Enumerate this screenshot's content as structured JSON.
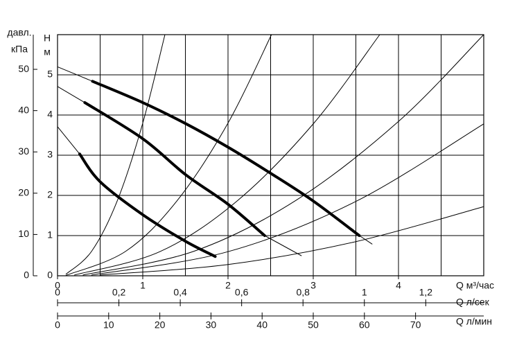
{
  "chart_data": {
    "type": "line",
    "ylabel": [
      "H",
      "м"
    ],
    "y2label": [
      "давл.",
      "кПа"
    ],
    "xlabel": "Q  м³/час",
    "x2label": "Q  л/сек",
    "x3label": "Q  л/мин",
    "xlim": [
      0,
      5
    ],
    "xticks": [
      0,
      1,
      2,
      3,
      4
    ],
    "xgrid": [
      0.5,
      1,
      1.5,
      2,
      2.5,
      3,
      3.5,
      4,
      4.5,
      5
    ],
    "ylim": [
      0,
      6
    ],
    "yticks": [
      0,
      1,
      2,
      3,
      4,
      5
    ],
    "y2lim": [
      0,
      58.4
    ],
    "y2ticks": [
      0,
      10,
      20,
      30,
      40,
      50
    ],
    "x2lim": [
      0,
      1.389
    ],
    "x2ticks": [
      0,
      {
        "value": 0.2,
        "label": "0,2"
      },
      {
        "value": 0.4,
        "label": "0,4"
      },
      {
        "value": 0.6,
        "label": "0,6"
      },
      {
        "value": 0.8,
        "label": "0,8"
      },
      1,
      {
        "value": 1.2,
        "label": "1,2"
      }
    ],
    "x3lim": [
      0,
      83.33
    ],
    "x3ticks": [
      0,
      10,
      20,
      30,
      40,
      50,
      60,
      70
    ],
    "grid": true,
    "color": "#000000",
    "series": [
      {
        "width": 1,
        "x": [
          0,
          0.41
        ],
        "values": [
          5.2,
          4.84
        ]
      },
      {
        "width": 4,
        "x": [
          0.41,
          1,
          1.5,
          2,
          2.5,
          3,
          3.54
        ],
        "values": [
          4.84,
          4.31,
          3.79,
          3.2,
          2.55,
          1.86,
          1.0
        ]
      },
      {
        "width": 1,
        "x": [
          3.54,
          3.69
        ],
        "values": [
          1.0,
          0.79
        ]
      },
      {
        "width": 1,
        "x": [
          0,
          0.32
        ],
        "values": [
          4.71,
          4.31
        ]
      },
      {
        "width": 4,
        "x": [
          0.32,
          1,
          1.5,
          2,
          2.43
        ],
        "values": [
          4.31,
          3.41,
          2.52,
          1.78,
          1.0
        ]
      },
      {
        "width": 1,
        "x": [
          2.43,
          2.86
        ],
        "values": [
          1.0,
          0.5
        ]
      },
      {
        "width": 1,
        "x": [
          0,
          0.26
        ],
        "values": [
          3.71,
          3.03
        ]
      },
      {
        "width": 4,
        "x": [
          0.26,
          0.5,
          1,
          1.5,
          1.85
        ],
        "values": [
          3.03,
          2.34,
          1.52,
          0.86,
          0.48
        ]
      },
      {
        "width": 1,
        "x": [
          0.1,
          0.4,
          0.7,
          1.0,
          1.26
        ],
        "values": [
          0.04,
          0.61,
          1.86,
          3.8,
          6.0
        ]
      },
      {
        "width": 1,
        "x": [
          0.1,
          0.8,
          1.4,
          2.0,
          2.51
        ],
        "values": [
          0.01,
          0.61,
          1.86,
          3.8,
          6.0
        ]
      },
      {
        "width": 1,
        "x": [
          0.2,
          1.2,
          2.1,
          3.0,
          3.78
        ],
        "values": [
          0.02,
          0.6,
          1.85,
          3.78,
          6.0
        ]
      },
      {
        "width": 1,
        "x": [
          0.3,
          1.6,
          2.8,
          4.0,
          5.0
        ],
        "values": [
          0.02,
          0.61,
          1.88,
          3.84,
          6.0
        ]
      },
      {
        "width": 1,
        "x": [
          0.4,
          2.0,
          3.5,
          5.0
        ],
        "values": [
          0.02,
          0.6,
          1.85,
          3.78
        ]
      },
      {
        "width": 1,
        "x": [
          0.5,
          2.0,
          3.5,
          5.0
        ],
        "values": [
          0.02,
          0.28,
          0.85,
          1.72
        ]
      }
    ]
  }
}
